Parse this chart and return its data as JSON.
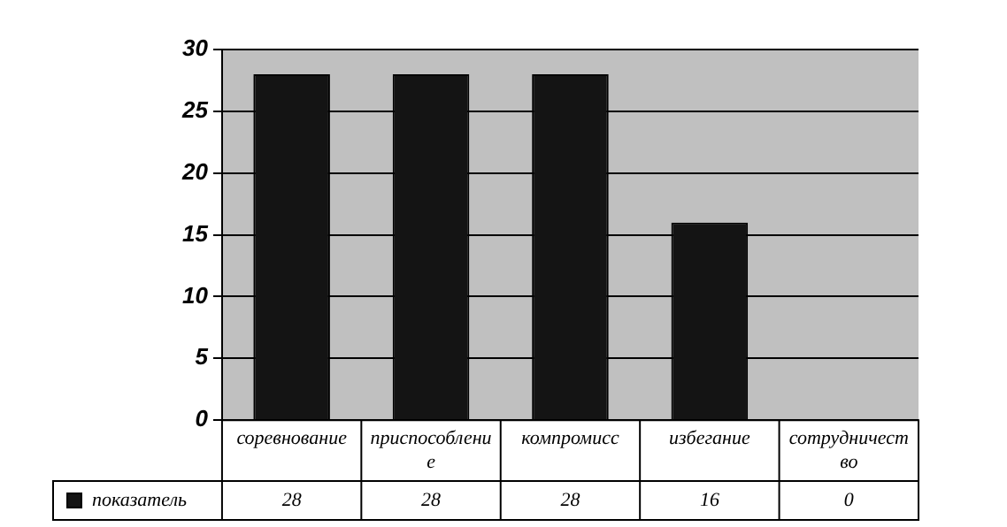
{
  "chart_data": {
    "type": "bar",
    "categories": [
      "соревнование",
      "приспособление",
      "компромисс",
      "избегание",
      "сотрудничество"
    ],
    "series": [
      {
        "name": "показатель",
        "color": "#141414",
        "values": [
          28,
          28,
          28,
          16,
          0
        ]
      }
    ],
    "ylim": [
      0,
      30
    ],
    "yticks": [
      0,
      5,
      10,
      15,
      20,
      25,
      30
    ],
    "grid": "y",
    "legend": "bottom",
    "data_labels": true
  }
}
